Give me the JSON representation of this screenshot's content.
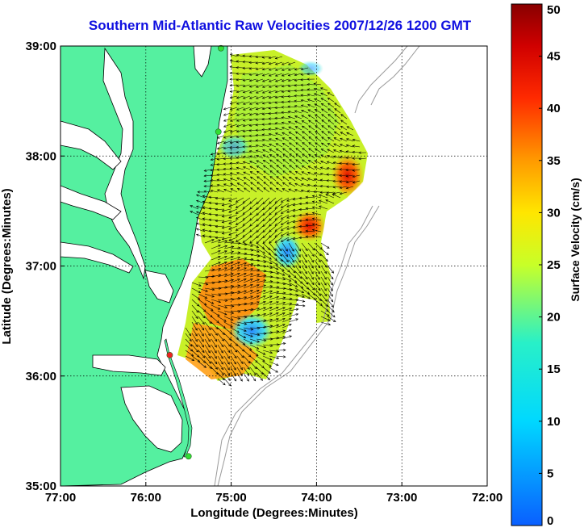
{
  "title": "Southern Mid-Atlantic Raw Velocities 2007/12/26 1200 GMT",
  "map": {
    "xlabel": "Longitude (Degrees:Minutes)",
    "ylabel": "Latitude (Degrees:Minutes)",
    "lon_range": [
      -77,
      -72
    ],
    "lat_range": [
      35,
      39
    ],
    "x_ticks": [
      {
        "value": -77,
        "label": "77:00"
      },
      {
        "value": -76,
        "label": "76:00"
      },
      {
        "value": -75,
        "label": "75:00"
      },
      {
        "value": -74,
        "label": "74:00"
      },
      {
        "value": -73,
        "label": "73:00"
      },
      {
        "value": -72,
        "label": "72:00"
      }
    ],
    "y_ticks": [
      {
        "value": 35,
        "label": "35:00"
      },
      {
        "value": 36,
        "label": "36:00"
      },
      {
        "value": 37,
        "label": "37:00"
      },
      {
        "value": 38,
        "label": "38:00"
      },
      {
        "value": 39,
        "label": "39:00"
      }
    ],
    "grid": true,
    "land_color": "#55f0a0",
    "coastline_color": "#000000",
    "bathymetry_color": "#9a9a9a",
    "stations": [
      {
        "lon": -75.12,
        "lat": 38.98,
        "color": "#33dd33"
      },
      {
        "lon": -75.15,
        "lat": 38.22,
        "color": "#33dd33"
      },
      {
        "lon": -75.72,
        "lat": 36.19,
        "color": "#ee2222"
      },
      {
        "lon": -75.5,
        "lat": 35.27,
        "color": "#33dd33"
      }
    ]
  },
  "colorbar": {
    "label": "Surface Velocity (cm/s)",
    "min": 0,
    "max": 50,
    "ticks": [
      {
        "value": 0,
        "label": "0"
      },
      {
        "value": 5,
        "label": "5"
      },
      {
        "value": 10,
        "label": "10"
      },
      {
        "value": 15,
        "label": "15"
      },
      {
        "value": 20,
        "label": "20"
      },
      {
        "value": 25,
        "label": "25"
      },
      {
        "value": 30,
        "label": "30"
      },
      {
        "value": 35,
        "label": "35"
      },
      {
        "value": 40,
        "label": "40"
      },
      {
        "value": 45,
        "label": "45"
      },
      {
        "value": 50,
        "label": "50"
      }
    ],
    "colormap": "jet"
  }
}
